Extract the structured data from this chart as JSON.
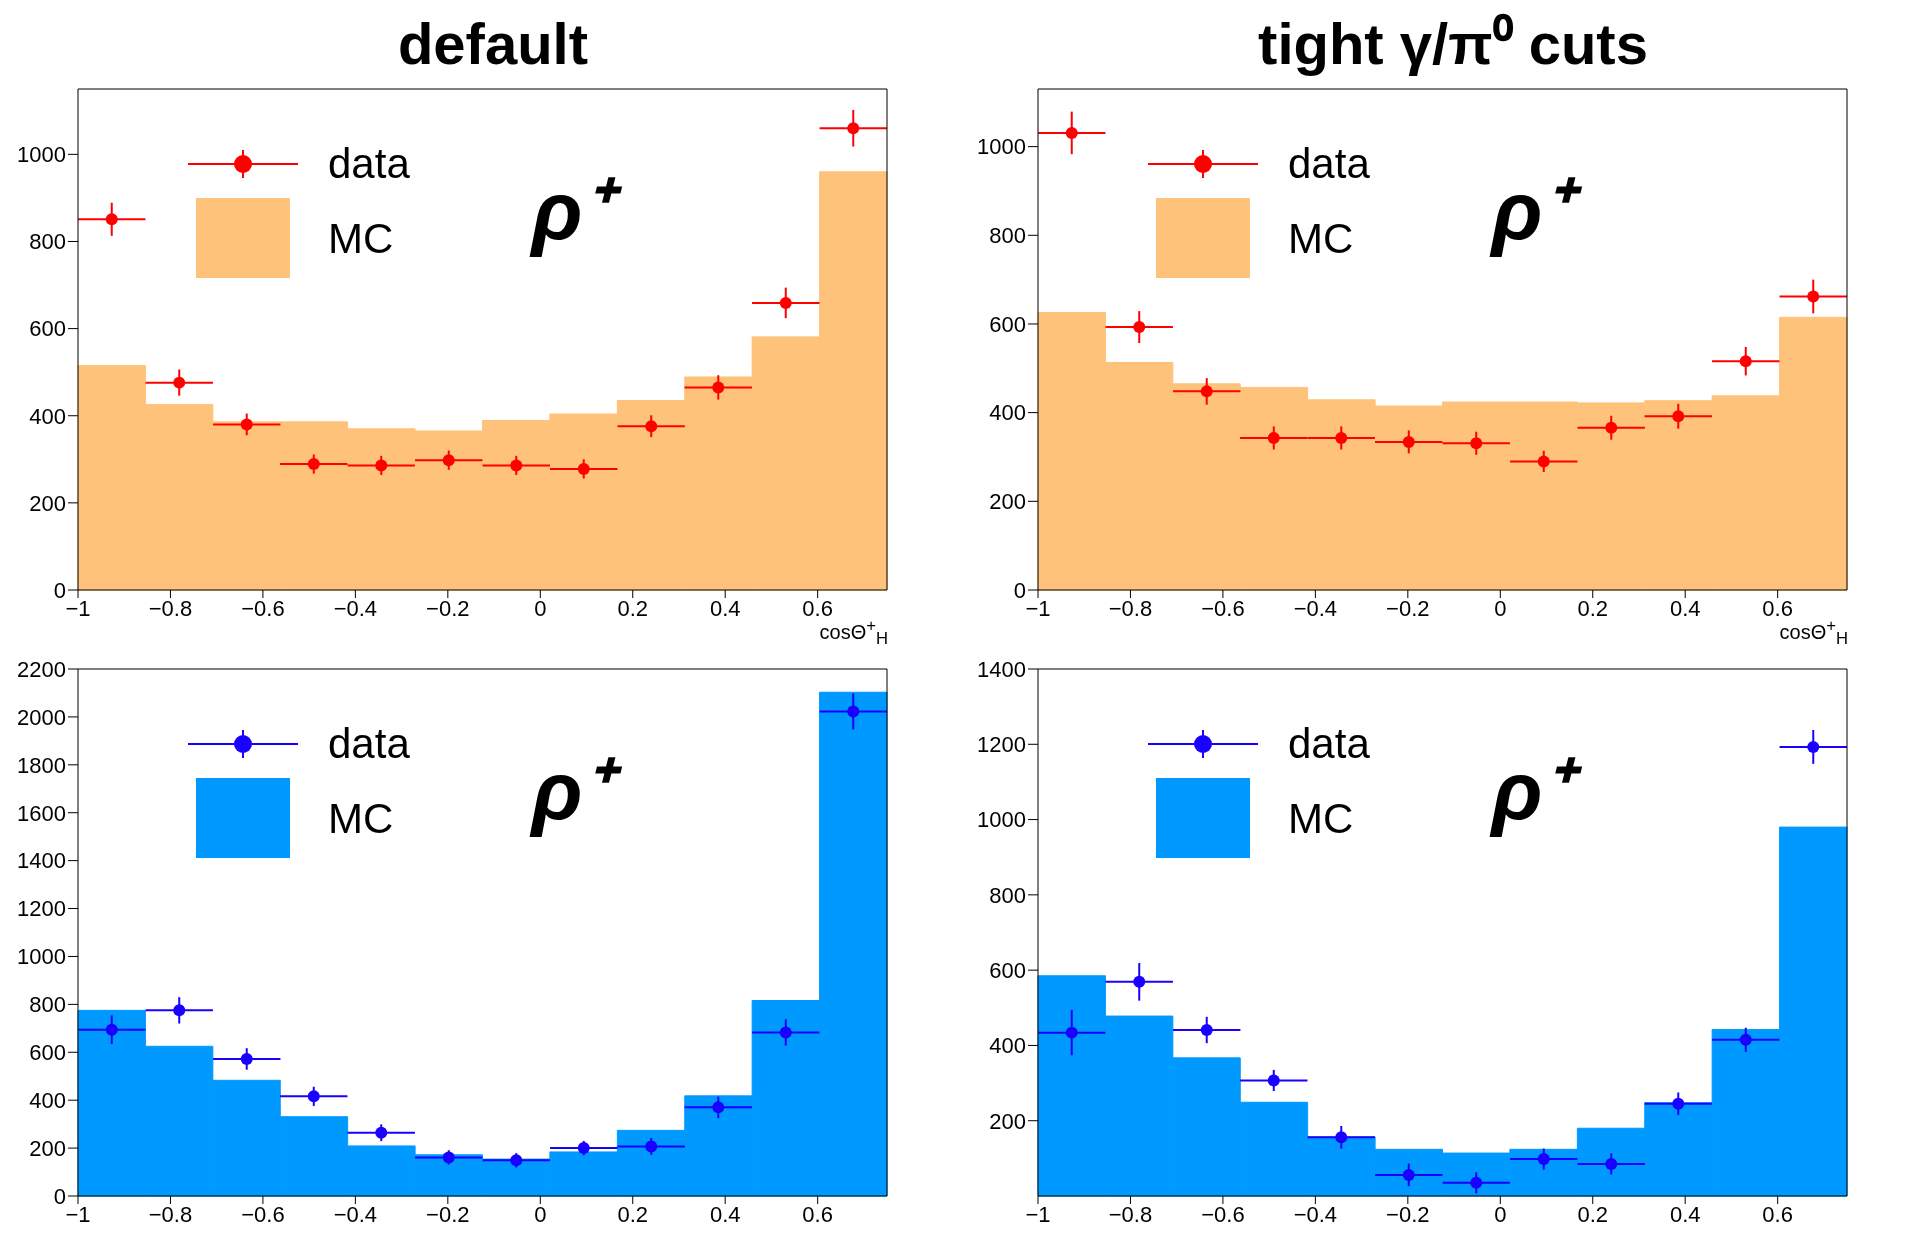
{
  "chart_data": [
    {
      "type": "histogram",
      "title": "default",
      "xlabel": "cosΘ$^{+}$$_{H}$",
      "bins": [
        -1,
        -0.8542,
        -0.7083,
        -0.5625,
        -0.4167,
        -0.2708,
        -0.125,
        0.0208,
        0.1667,
        0.3125,
        0.4583,
        0.6042,
        0.75
      ],
      "xlim": [
        -1,
        0.75
      ],
      "xticks": [
        -1,
        -0.8,
        -0.6,
        -0.4,
        -0.2,
        0,
        0.2,
        0.4,
        0.6
      ],
      "ylim": [
        0,
        1150
      ],
      "yticks": [
        0,
        200,
        400,
        600,
        800,
        1000
      ],
      "legend": "top left",
      "annotations": [
        "ρ⁺"
      ],
      "series": [
        {
          "name": "data",
          "type": "scatter",
          "color": "#ff0000",
          "x": [
            -0.927,
            -0.781,
            -0.635,
            -0.49,
            -0.344,
            -0.198,
            -0.052,
            0.094,
            0.24,
            0.385,
            0.531,
            0.677
          ],
          "values": [
            851,
            476,
            380,
            289,
            286,
            298,
            286,
            278,
            376,
            465,
            659,
            1060
          ],
          "errors": [
            38,
            30,
            25,
            22,
            22,
            22,
            22,
            22,
            25,
            28,
            35,
            42
          ],
          "xerrors": [
            0.0729,
            0.0729,
            0.0729,
            0.0729,
            0.0729,
            0.0729,
            0.0729,
            0.0729,
            0.0729,
            0.0729,
            0.0729,
            0.0729
          ]
        },
        {
          "name": "MC",
          "color": "#ffc27a",
          "values": [
            515,
            426,
            386,
            386,
            370,
            365,
            389,
            404,
            435,
            489,
            581,
            960
          ]
        }
      ]
    },
    {
      "type": "histogram",
      "title": "tight γ/π⁰ cuts",
      "xlabel": "cosΘ$^{+}$$_{H}$",
      "bins": [
        -1,
        -0.8542,
        -0.7083,
        -0.5625,
        -0.4167,
        -0.2708,
        -0.125,
        0.0208,
        0.1667,
        0.3125,
        0.4583,
        0.6042,
        0.75
      ],
      "xlim": [
        -1,
        0.75
      ],
      "xticks": [
        -1,
        -0.8,
        -0.6,
        -0.4,
        -0.2,
        0,
        0.2,
        0.4,
        0.6
      ],
      "ylim": [
        0,
        1130
      ],
      "yticks": [
        0,
        200,
        400,
        600,
        800,
        1000
      ],
      "legend": "top left",
      "annotations": [
        "ρ⁺"
      ],
      "series": [
        {
          "name": "data",
          "type": "scatter",
          "color": "#ff0000",
          "x": [
            -0.927,
            -0.781,
            -0.635,
            -0.49,
            -0.344,
            -0.198,
            -0.052,
            0.094,
            0.24,
            0.385,
            0.531,
            0.677
          ],
          "values": [
            1031,
            593,
            448,
            343,
            343,
            334,
            331,
            290,
            366,
            392,
            516,
            662
          ],
          "errors": [
            48,
            36,
            30,
            26,
            26,
            26,
            26,
            24,
            27,
            28,
            32,
            38
          ],
          "xerrors": [
            0.0729,
            0.0729,
            0.0729,
            0.0729,
            0.0729,
            0.0729,
            0.0729,
            0.0729,
            0.0729,
            0.0729,
            0.0729,
            0.0729
          ]
        },
        {
          "name": "MC",
          "color": "#ffc27a",
          "values": [
            626,
            513,
            465,
            457,
            429,
            415,
            424,
            424,
            422,
            427,
            438,
            615
          ]
        }
      ]
    },
    {
      "type": "histogram",
      "bins": [
        -1,
        -0.8542,
        -0.7083,
        -0.5625,
        -0.4167,
        -0.2708,
        -0.125,
        0.0208,
        0.1667,
        0.3125,
        0.4583,
        0.6042,
        0.75
      ],
      "xlim": [
        -1,
        0.75
      ],
      "xticks": [
        -1,
        -0.8,
        -0.6,
        -0.4,
        -0.2,
        0,
        0.2,
        0.4,
        0.6
      ],
      "ylim": [
        0,
        2200
      ],
      "yticks": [
        0,
        200,
        400,
        600,
        800,
        1000,
        1200,
        1400,
        1600,
        1800,
        2000,
        2200
      ],
      "legend": "top left",
      "annotations": [
        "ρ⁺"
      ],
      "series": [
        {
          "name": "data",
          "type": "scatter",
          "color": "#1a00ff",
          "x": [
            -0.927,
            -0.781,
            -0.635,
            -0.49,
            -0.344,
            -0.198,
            -0.052,
            0.094,
            0.24,
            0.385,
            0.531,
            0.677
          ],
          "values": [
            694,
            775,
            572,
            416,
            264,
            161,
            149,
            200,
            207,
            370,
            683,
            2023
          ],
          "errors": [
            60,
            55,
            45,
            40,
            35,
            30,
            30,
            30,
            35,
            45,
            55,
            75
          ],
          "xerrors": [
            0.0729,
            0.0729,
            0.0729,
            0.0729,
            0.0729,
            0.0729,
            0.0729,
            0.0729,
            0.0729,
            0.0729,
            0.0729,
            0.0729
          ]
        },
        {
          "name": "MC",
          "color": "#0099ff",
          "values": [
            775,
            625,
            483,
            331,
            209,
            172,
            154,
            184,
            274,
            418,
            816,
            2103
          ]
        }
      ]
    },
    {
      "type": "histogram",
      "bins": [
        -1,
        -0.8542,
        -0.7083,
        -0.5625,
        -0.4167,
        -0.2708,
        -0.125,
        0.0208,
        0.1667,
        0.3125,
        0.4583,
        0.6042,
        0.75
      ],
      "xlim": [
        -1,
        0.75
      ],
      "xticks": [
        -1,
        -0.8,
        -0.6,
        -0.4,
        -0.2,
        0,
        0.2,
        0.4,
        0.6
      ],
      "ylim": [
        0,
        1400
      ],
      "yticks": [
        200,
        400,
        600,
        800,
        1000,
        1200,
        1400
      ],
      "legend": "top left",
      "annotations": [
        "ρ⁺"
      ],
      "series": [
        {
          "name": "data",
          "type": "scatter",
          "color": "#1a00ff",
          "x": [
            -0.927,
            -0.781,
            -0.635,
            -0.49,
            -0.344,
            -0.198,
            -0.052,
            0.094,
            0.24,
            0.385,
            0.531,
            0.677
          ],
          "values": [
            434,
            569,
            441,
            307,
            156,
            56,
            35,
            98,
            85,
            245,
            415,
            1193
          ],
          "errors": [
            60,
            50,
            35,
            28,
            30,
            30,
            28,
            28,
            28,
            30,
            32,
            45
          ],
          "xerrors": [
            0.0729,
            0.0729,
            0.0729,
            0.0729,
            0.0729,
            0.0729,
            0.0729,
            0.0729,
            0.0729,
            0.0729,
            0.0729,
            0.0729
          ]
        },
        {
          "name": "MC",
          "color": "#0099ff",
          "values": [
            585,
            478,
            367,
            249,
            157,
            124,
            114,
            124,
            180,
            248,
            442,
            980
          ]
        }
      ]
    }
  ]
}
